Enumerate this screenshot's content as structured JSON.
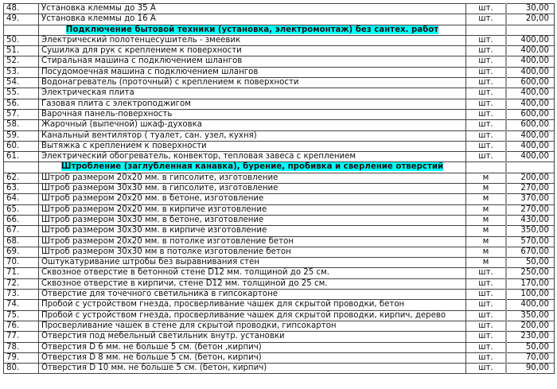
{
  "colors": {
    "section_highlight": "#00ffff"
  },
  "rows": [
    {
      "num": "48.",
      "desc": "Установка клеммы до 35 А",
      "unit": "шт.",
      "price": "30,00"
    },
    {
      "num": "49.",
      "desc": "Установка клеммы до 16 А",
      "unit": "шт.",
      "price": "20,00"
    },
    {
      "section": "Подключение бытовой техники (установка, электромонтаж) без сантех. работ"
    },
    {
      "num": "50.",
      "desc": "Электрический полотенцесушитель - змеевик",
      "unit": "шт.",
      "price": "400,00"
    },
    {
      "num": "51.",
      "desc": "Сушилка для рук с креплением к поверхности",
      "unit": "шт.",
      "price": "400,00"
    },
    {
      "num": "52.",
      "desc": "Стиральная машина с подключением шлангов",
      "unit": "шт.",
      "price": "400,00"
    },
    {
      "num": "53.",
      "desc": "Посудомоечная машина с подключением шлангов",
      "unit": "шт.",
      "price": "400,00"
    },
    {
      "num": "54.",
      "desc": "Водонагреватель (проточный) с креплением к поверхности",
      "unit": "шт.",
      "price": "600,00"
    },
    {
      "num": "55.",
      "desc": "Электрическая плита",
      "unit": "шт.",
      "price": "400,00"
    },
    {
      "num": "56.",
      "desc": "Газовая плита с электроподжигом",
      "unit": "шт.",
      "price": "400,00"
    },
    {
      "num": "57.",
      "desc": "Варочная панель-поверхность",
      "unit": "шт.",
      "price": "600,00"
    },
    {
      "num": "58.",
      "desc": "Жарочный (выпечной) шкаф-духовка",
      "unit": "шт.",
      "price": "600,00"
    },
    {
      "num": "59.",
      "desc": "Канальный вентилятор ( туалет, сан. узел, кухня)",
      "unit": "шт.",
      "price": "400,00"
    },
    {
      "num": "60.",
      "desc": "Вытяжка с креплением к поверхности",
      "unit": "шт.",
      "price": "400,00"
    },
    {
      "num": "61.",
      "desc": "Электрический обогреватель, конвектор, тепловая завеса с креплением",
      "unit": "шт.",
      "price": "400,00"
    },
    {
      "section": "Штробление (заглубленная канавка), бурение, пробивка и сверление отверстий"
    },
    {
      "num": "62.",
      "desc": "Штроб размером 20x20 мм. в гипсолите, изготовление",
      "unit": "м",
      "price": "200,00"
    },
    {
      "num": "63.",
      "desc": "Штроб размером 30x30 мм. в гипсолите, изготовление",
      "unit": "м",
      "price": "270,00"
    },
    {
      "num": "64.",
      "desc": "Штроб размером 20x20 мм. в бетоне, изготовление",
      "unit": "м",
      "price": "370,00"
    },
    {
      "num": "65.",
      "desc": "Штроб размером 20x20 мм. в кирпиче изготовление",
      "unit": "м",
      "price": "270,00"
    },
    {
      "num": "66.",
      "desc": "Штроб размером 30x30 мм. в бетоне, изготовление",
      "unit": "м",
      "price": "430,00"
    },
    {
      "num": "67.",
      "desc": "Штроб размером 30x30 мм. в кирпиче изготовление",
      "unit": "м",
      "price": "350,00"
    },
    {
      "num": "68.",
      "desc": "Штроб размером 20x20 мм. в потолке изготовление бетон",
      "unit": "м",
      "price": "570,00"
    },
    {
      "num": "69.",
      "desc": "Штроб размером 30x30 мм в потолке изготовление бетон",
      "unit": "м",
      "price": "670,00"
    },
    {
      "num": "70.",
      "desc": "Оштукатуривание штробы без выравнивания стен",
      "unit": "м",
      "price": "50,00"
    },
    {
      "num": "71.",
      "desc": "Сквозное отверстие в бетонной стене D12 мм. толщиной до 25 см.",
      "unit": "шт.",
      "price": "250,00"
    },
    {
      "num": "72.",
      "desc": "Сквозное отверстие в кирпичи, стене D12 мм. толщиной до 25 см.",
      "unit": "шт.",
      "price": "170,00"
    },
    {
      "num": "73.",
      "desc": "Отверстие для точечного светильника в гипсокартоне",
      "unit": "шт.",
      "price": "100,00"
    },
    {
      "num": "74.",
      "desc": "Пробой с устройством гнезда, просверливание чашек для скрытой проводки, бетон",
      "unit": "шт.",
      "price": "400,00"
    },
    {
      "num": "75.",
      "desc": "Пробой с устройством гнезда, просверливание чашек для скрытой проводки, кирпич, дерево",
      "unit": "шт.",
      "price": "350,00"
    },
    {
      "num": "76.",
      "desc": "Просверливание чашек в стене для скрытой проводки, гипсокартон",
      "unit": "шт.",
      "price": "200,00"
    },
    {
      "num": "77.",
      "desc": "Отверстия под мебельный светильник внутр. установки",
      "unit": "шт.",
      "price": "230,00"
    },
    {
      "num": "78.",
      "desc": "Отверстия D 6 мм. не больше 5 см. (бетон ,кирпич)",
      "unit": "шт.",
      "price": "50,00"
    },
    {
      "num": "79.",
      "desc": "Отверстия D 8 мм. не больше 5 см. (бетон, кирпич)",
      "unit": "шт.",
      "price": "70,00"
    },
    {
      "num": "80.",
      "desc": "Отверстия D 10 мм. не больше 5 см. (бетон, кирпич)",
      "unit": "шт.",
      "price": "90,00"
    }
  ]
}
